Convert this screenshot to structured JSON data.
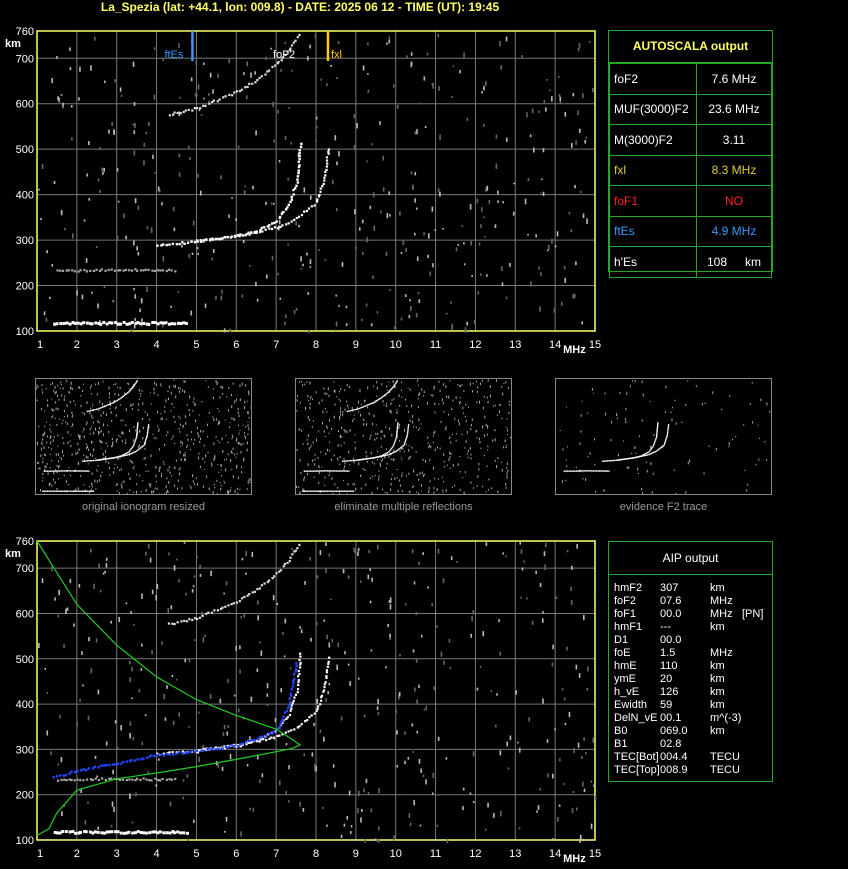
{
  "header": {
    "title": "La_Spezia (lat: +44.1, lon: 009.8) - DATE: 2025 06 12 - TIME (UT): 19:45"
  },
  "colors": {
    "frame": "#ffff66",
    "grid": "#777777",
    "panel_border": "#22aa22",
    "fxl": "#ffcc00",
    "ftEs": "#3399ff",
    "foF1": "#ff2222",
    "profile_green": "#22cc22",
    "profile_blue": "#2244ff"
  },
  "top_chart": {
    "y_unit": "km",
    "x_unit": "MHz",
    "y_ticks": [
      "760",
      "700",
      "600",
      "500",
      "400",
      "300",
      "200",
      "100"
    ],
    "x_ticks": [
      "1",
      "2",
      "3",
      "4",
      "5",
      "6",
      "7",
      "8",
      "9",
      "10",
      "11",
      "12",
      "13",
      "14",
      "15"
    ],
    "marker_labels": {
      "ftEs": "ftEs",
      "foF2": "foF2",
      "fxl": "fxl"
    }
  },
  "autoscala": {
    "title": "AUTOSCALA output",
    "rows": [
      {
        "label": "foF2",
        "value": "7.6 MHz",
        "color": "#ffffff"
      },
      {
        "label": "MUF(3000)F2",
        "value": "23.6 MHz",
        "color": "#ffffff"
      },
      {
        "label": "M(3000)F2",
        "value": "3.11",
        "color": "#ffffff"
      },
      {
        "label": "fxl",
        "value": "8.3 MHz",
        "color": "#ddcc33"
      },
      {
        "label": "foF1",
        "value": "NO",
        "color": "#ff2222"
      },
      {
        "label": "ftEs",
        "value": "4.9 MHz",
        "color": "#3399ff"
      },
      {
        "label": "h'Es",
        "value": "108",
        "unit": "km",
        "color": "#ffffff"
      }
    ]
  },
  "thumbnails": [
    {
      "caption": "original ionogram resized"
    },
    {
      "caption": "eliminate multiple reflections"
    },
    {
      "caption": "evidence F2 trace"
    }
  ],
  "bottom_chart": {
    "y_unit": "km",
    "x_unit": "MHz",
    "y_ticks": [
      "760",
      "700",
      "600",
      "500",
      "400",
      "300",
      "200",
      "100"
    ],
    "x_ticks": [
      "1",
      "2",
      "3",
      "4",
      "5",
      "6",
      "7",
      "8",
      "9",
      "10",
      "11",
      "12",
      "13",
      "14",
      "15"
    ]
  },
  "aip": {
    "title": "AIP output",
    "rows": [
      [
        "hmF2",
        "307",
        "km",
        ""
      ],
      [
        "foF2",
        "07.6",
        "MHz",
        ""
      ],
      [
        "foF1",
        "00.0",
        "MHz",
        "[PN]"
      ],
      [
        "hmF1",
        "---",
        "km",
        ""
      ],
      [
        "D1",
        "00.0",
        "",
        ""
      ],
      [
        "foE",
        "1.5",
        "MHz",
        ""
      ],
      [
        "hmE",
        "110",
        "km",
        ""
      ],
      [
        "ymE",
        "20",
        "km",
        ""
      ],
      [
        "h_vE",
        "126",
        "km",
        ""
      ],
      [
        "Ewidth",
        "59",
        "km",
        ""
      ],
      [
        "DelN_vE",
        "00.1",
        "m^(-3)",
        ""
      ],
      [
        "B0",
        "069.0",
        "km",
        ""
      ],
      [
        "B1",
        "02.8",
        "",
        ""
      ],
      [
        "TEC[Bot]",
        "004.4",
        "TECU",
        ""
      ],
      [
        "TEC[Top]",
        "008.9",
        "TECU",
        ""
      ]
    ]
  },
  "chart_data": [
    {
      "type": "scatter",
      "title": "La_Spezia (lat: +44.1, lon: 009.8) - DATE: 2025 06 12 - TIME (UT): 19:45",
      "xlabel": "MHz",
      "ylabel": "km",
      "xlim": [
        1,
        15
      ],
      "ylim": [
        100,
        760
      ],
      "grid": true,
      "markers": [
        {
          "name": "ftEs",
          "x": 4.9
        },
        {
          "name": "foF2",
          "x": 7.6
        },
        {
          "name": "fxl",
          "x": 8.3
        }
      ],
      "series": [
        {
          "name": "Es trace",
          "x": [
            1.4,
            2.0,
            2.5,
            3.0,
            3.5,
            4.0,
            4.5,
            4.8
          ],
          "y": [
            120,
            120,
            120,
            120,
            120,
            120,
            120,
            120
          ]
        },
        {
          "name": "Es multiple",
          "x": [
            1.5,
            2.0,
            3.0,
            3.5,
            4.0,
            4.5
          ],
          "y": [
            235,
            235,
            237,
            236,
            236,
            235
          ]
        },
        {
          "name": "F2 o-trace",
          "x": [
            4.0,
            5.0,
            6.0,
            6.5,
            7.0,
            7.3,
            7.5,
            7.6
          ],
          "y": [
            292,
            298,
            312,
            322,
            345,
            380,
            430,
            520
          ]
        },
        {
          "name": "F2 x-trace",
          "x": [
            5.0,
            6.0,
            7.0,
            7.5,
            8.0,
            8.2,
            8.3
          ],
          "y": [
            300,
            310,
            330,
            350,
            385,
            440,
            510
          ]
        },
        {
          "name": "F2 second hop",
          "x": [
            4.3,
            5.0,
            6.0,
            6.5,
            7.0,
            7.3,
            7.6
          ],
          "y": [
            578,
            592,
            628,
            655,
            690,
            720,
            760
          ]
        }
      ]
    },
    {
      "type": "line",
      "xlabel": "MHz",
      "ylabel": "km",
      "xlim": [
        1,
        15
      ],
      "ylim": [
        100,
        760
      ],
      "grid": true,
      "series": [
        {
          "name": "AIP profile",
          "x": [
            1.0,
            1.3,
            1.5,
            2.0,
            3.0,
            4.0,
            5.0,
            6.0,
            7.0,
            7.4,
            7.6,
            7.4,
            7.0,
            6.0,
            5.0,
            4.0,
            3.0,
            2.0,
            1.5,
            1.0
          ],
          "y": [
            110,
            125,
            160,
            210,
            235,
            248,
            262,
            278,
            295,
            302,
            310,
            322,
            345,
            375,
            410,
            460,
            530,
            620,
            690,
            760
          ]
        },
        {
          "name": "Model F2 trace",
          "x": [
            1.4,
            2.0,
            3.0,
            4.0,
            5.0,
            6.0,
            6.5,
            7.0,
            7.3,
            7.5
          ],
          "y": [
            240,
            255,
            272,
            290,
            298,
            312,
            325,
            345,
            400,
            500
          ]
        }
      ]
    }
  ]
}
